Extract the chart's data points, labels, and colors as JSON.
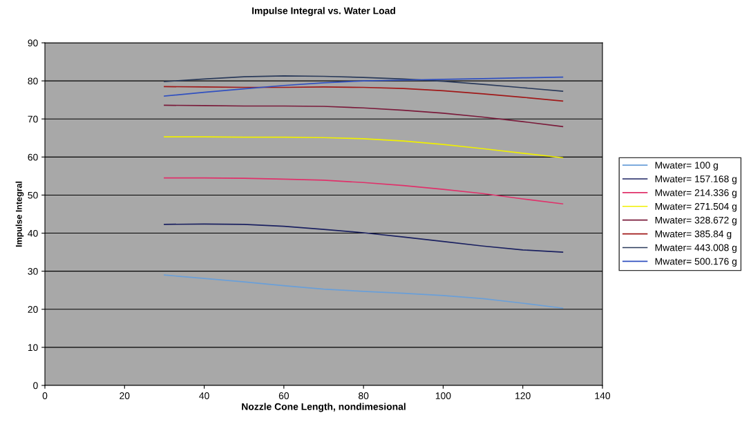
{
  "chart_data": {
    "type": "line",
    "title": "Impulse Integral vs. Water Load",
    "xlabel": "Nozzle Cone Length, nondimesional",
    "ylabel": "Impulse Integral",
    "x": [
      30,
      40,
      50,
      60,
      70,
      80,
      90,
      100,
      110,
      120,
      130
    ],
    "xlim": [
      0,
      140
    ],
    "xticks": [
      0,
      20,
      40,
      60,
      80,
      100,
      120,
      140
    ],
    "ylim": [
      0,
      90
    ],
    "yticks": [
      0,
      10,
      20,
      30,
      40,
      50,
      60,
      70,
      80,
      90
    ],
    "grid": "y",
    "legend": "right",
    "marker": "none",
    "line_style": "solid",
    "series": [
      {
        "name": "Mwater= 100 g",
        "color": "#6a9fd8",
        "values": [
          29.0,
          28.1,
          27.2,
          26.2,
          25.3,
          24.7,
          24.2,
          23.6,
          22.8,
          21.6,
          20.3
        ]
      },
      {
        "name": "Mwater= 157.168 g",
        "color": "#1a2060",
        "values": [
          42.3,
          42.4,
          42.3,
          41.8,
          41.0,
          40.1,
          39.0,
          37.8,
          36.6,
          35.6,
          35.0
        ]
      },
      {
        "name": "Mwater= 214.336 g",
        "color": "#e0306a",
        "values": [
          54.5,
          54.5,
          54.4,
          54.2,
          53.9,
          53.3,
          52.5,
          51.5,
          50.4,
          49.0,
          47.7
        ]
      },
      {
        "name": "Mwater= 271.504 g",
        "color": "#f0f000",
        "values": [
          65.3,
          65.3,
          65.2,
          65.2,
          65.1,
          64.8,
          64.2,
          63.3,
          62.2,
          61.0,
          59.8
        ]
      },
      {
        "name": "Mwater= 328.672 g",
        "color": "#7a1a3a",
        "values": [
          73.6,
          73.5,
          73.4,
          73.4,
          73.3,
          72.9,
          72.3,
          71.5,
          70.5,
          69.3,
          68.0
        ]
      },
      {
        "name": "Mwater= 385.84 g",
        "color": "#a01818",
        "values": [
          78.5,
          78.4,
          78.3,
          78.3,
          78.4,
          78.3,
          78.0,
          77.4,
          76.6,
          75.7,
          74.7
        ]
      },
      {
        "name": "Mwater= 443.008 g",
        "color": "#2a3a5a",
        "values": [
          79.8,
          80.5,
          81.1,
          81.3,
          81.2,
          80.9,
          80.5,
          79.9,
          79.1,
          78.2,
          77.3
        ]
      },
      {
        "name": "Mwater= 500.176 g",
        "color": "#3050c0",
        "values": [
          76.0,
          77.0,
          77.9,
          78.8,
          79.5,
          80.0,
          80.2,
          80.4,
          80.6,
          80.8,
          81.0
        ]
      }
    ]
  }
}
